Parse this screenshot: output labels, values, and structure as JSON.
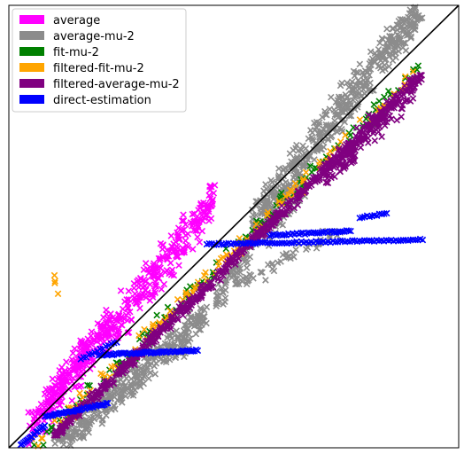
{
  "chart_data": {
    "type": "scatter",
    "title": "",
    "xlabel": "",
    "ylabel": "",
    "xlim": [
      0,
      1
    ],
    "ylim": [
      0,
      1
    ],
    "grid": false,
    "legend_position": "top-left",
    "marker": "x",
    "reference_line": {
      "name": "identity",
      "from": [
        0,
        0
      ],
      "to": [
        1,
        1
      ],
      "color": "#000000"
    },
    "series": [
      {
        "name": "average",
        "color": "#ff00ff",
        "clusters": [
          {
            "x": [
              0.04,
              0.46
            ],
            "y": [
              0.02,
              0.58
            ],
            "slope": 1.25,
            "spread": 0.07,
            "count": 420
          },
          {
            "x": [
              0.08,
              0.22
            ],
            "y": [
              0.08,
              0.3
            ],
            "slope": 1.4,
            "spread": 0.05,
            "count": 80
          }
        ]
      },
      {
        "name": "average-mu-2",
        "color": "#8c8c8c",
        "clusters": [
          {
            "x": [
              0.54,
              0.92
            ],
            "y": [
              0.5,
              1.0
            ],
            "slope": 1.3,
            "spread": 0.07,
            "count": 520
          },
          {
            "x": [
              0.1,
              0.44
            ],
            "y": [
              0.0,
              0.3
            ],
            "slope": 0.9,
            "spread": 0.06,
            "count": 380
          },
          {
            "x": [
              0.46,
              0.66
            ],
            "y": [
              0.34,
              0.6
            ],
            "slope": 1.3,
            "spread": 0.05,
            "count": 140
          },
          {
            "x": [
              0.5,
              0.74
            ],
            "y": [
              0.4,
              0.46
            ],
            "slope": 0.6,
            "spread": 0.03,
            "count": 50
          }
        ]
      },
      {
        "name": "fit-mu-2",
        "color": "#008000",
        "clusters": [
          {
            "x": [
              0.03,
              0.92
            ],
            "y": [
              0.0,
              0.84
            ],
            "slope": 1.0,
            "spread": 0.035,
            "count": 160
          }
        ]
      },
      {
        "name": "filtered-fit-mu-2",
        "color": "#ffa500",
        "clusters": [
          {
            "x": [
              0.03,
              0.9
            ],
            "y": [
              0.0,
              0.82
            ],
            "slope": 1.0,
            "spread": 0.03,
            "count": 130
          },
          {
            "x": [
              0.1,
              0.11
            ],
            "y": [
              0.33,
              0.41
            ],
            "slope": 0.0,
            "spread": 0.0,
            "count": 4
          }
        ]
      },
      {
        "name": "filtered-average-mu-2",
        "color": "#800080",
        "clusters": [
          {
            "x": [
              0.1,
              0.92
            ],
            "y": [
              0.05,
              0.82
            ],
            "slope": 1.0,
            "spread": 0.022,
            "count": 650
          },
          {
            "x": [
              0.7,
              0.9
            ],
            "y": [
              0.62,
              0.8
            ],
            "slope": 1.0,
            "spread": 0.05,
            "count": 140
          }
        ]
      },
      {
        "name": "direct-estimation",
        "color": "#0000ff",
        "segments": [
          {
            "x": [
              0.02,
              0.08
            ],
            "y": [
              0.0,
              0.05
            ],
            "count": 20
          },
          {
            "x": [
              0.08,
              0.22
            ],
            "y": [
              0.07,
              0.1
            ],
            "count": 40
          },
          {
            "x": [
              0.2,
              0.42
            ],
            "y": [
              0.21,
              0.22
            ],
            "count": 60
          },
          {
            "x": [
              0.16,
              0.24
            ],
            "y": [
              0.2,
              0.24
            ],
            "count": 14
          },
          {
            "x": [
              0.44,
              0.92
            ],
            "y": [
              0.46,
              0.47
            ],
            "count": 90
          },
          {
            "x": [
              0.58,
              0.76
            ],
            "y": [
              0.48,
              0.49
            ],
            "count": 40
          },
          {
            "x": [
              0.78,
              0.84
            ],
            "y": [
              0.52,
              0.53
            ],
            "count": 12
          }
        ]
      }
    ]
  }
}
